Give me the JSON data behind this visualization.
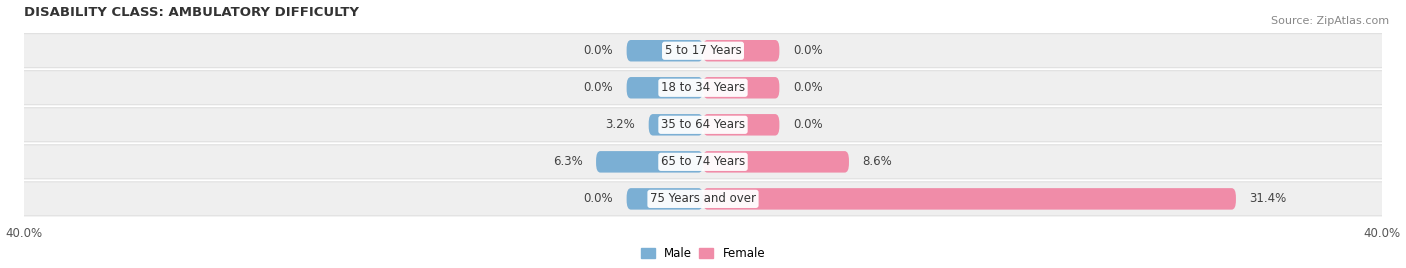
{
  "title": "DISABILITY CLASS: AMBULATORY DIFFICULTY",
  "source": "Source: ZipAtlas.com",
  "categories": [
    "5 to 17 Years",
    "18 to 34 Years",
    "35 to 64 Years",
    "65 to 74 Years",
    "75 Years and over"
  ],
  "male_values": [
    0.0,
    0.0,
    3.2,
    6.3,
    0.0
  ],
  "female_values": [
    0.0,
    0.0,
    0.0,
    8.6,
    31.4
  ],
  "male_color": "#7bafd4",
  "female_color": "#f08ca8",
  "row_bg_color": "#efefef",
  "row_edge_color": "#d8d8d8",
  "axis_limit": 40.0,
  "title_fontsize": 9.5,
  "label_fontsize": 8.5,
  "category_fontsize": 8.5,
  "source_fontsize": 8,
  "bar_height": 0.58,
  "default_bar_width": 4.5,
  "figsize": [
    14.06,
    2.68
  ],
  "dpi": 100
}
